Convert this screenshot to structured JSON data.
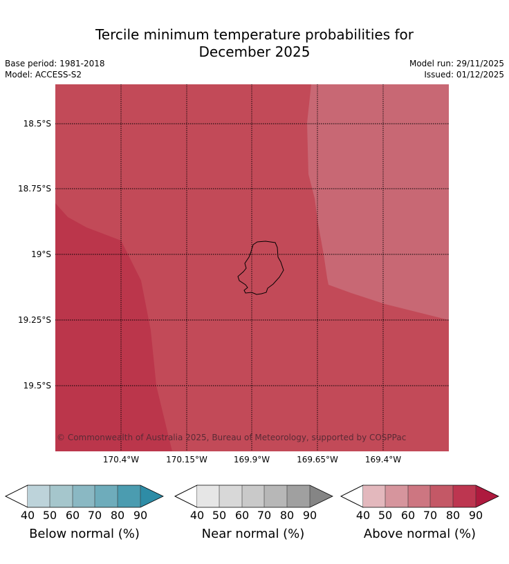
{
  "title": {
    "line1": "Tercile minimum temperature probabilities for",
    "line2": "December 2025"
  },
  "meta": {
    "base_period": "Base period: 1981-2018",
    "model": "Model: ACCESS-S2",
    "model_run": "Model run: 29/11/2025",
    "issued": "Issued: 01/12/2025"
  },
  "map": {
    "lat_labels": [
      "18.5°S",
      "18.75°S",
      "19°S",
      "19.25°S",
      "19.5°S"
    ],
    "lon_labels": [
      "170.4°W",
      "170.15°W",
      "169.9°W",
      "169.65°W",
      "169.4°W"
    ],
    "copyright": "© Commonwealth of Australia 2025, Bureau of Meteorology, supported by COSPPac",
    "region_colors": {
      "above_70": "#c24a58",
      "above_80": "#bb364b",
      "above_60": "#c86874"
    }
  },
  "colorbars": [
    {
      "label": "Below normal (%)",
      "ticks": [
        "40",
        "50",
        "60",
        "70",
        "80",
        "90"
      ],
      "colors": [
        "#bdd3da",
        "#a5c6cc",
        "#8ab8c3",
        "#6eacbb",
        "#4b9cb0",
        "#2e8ca6"
      ]
    },
    {
      "label": "Near normal (%)",
      "ticks": [
        "40",
        "50",
        "60",
        "70",
        "80",
        "90"
      ],
      "colors": [
        "#e6e6e6",
        "#d8d8d8",
        "#c9c9c9",
        "#b7b7b7",
        "#a0a0a0",
        "#858585"
      ]
    },
    {
      "label": "Above normal (%)",
      "ticks": [
        "40",
        "50",
        "60",
        "70",
        "80",
        "90"
      ],
      "colors": [
        "#e3b8bd",
        "#d6959d",
        "#cd7681",
        "#c45866",
        "#bd3650",
        "#ae1a3e"
      ]
    }
  ]
}
